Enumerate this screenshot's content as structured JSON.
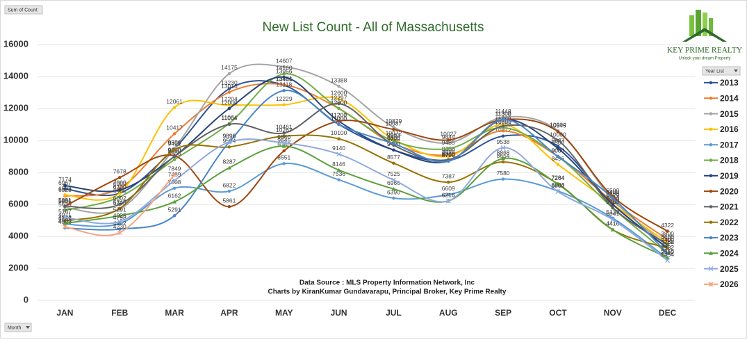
{
  "chart_data": {
    "type": "line",
    "title": "New List Count - All of Massachusetts",
    "field_button": "Sum of Count",
    "axis_button": "Month",
    "legend_title": "Year List",
    "brand": {
      "name": "KEY PRIME REALTY",
      "tagline": "Unlock your dream Property"
    },
    "notes": [
      "Data Source : MLS Property Information Network, Inc",
      "Charts by KiranKumar Gundavarapu, Principal Broker, Key Prime Realty"
    ],
    "categories": [
      "JAN",
      "FEB",
      "MAR",
      "APR",
      "MAY",
      "JUN",
      "JUL",
      "AUG",
      "SEP",
      "OCT",
      "NOV",
      "DEC"
    ],
    "ylim": [
      0,
      16000
    ],
    "yticks": [
      0,
      2000,
      4000,
      6000,
      8000,
      10000,
      12000,
      14000,
      16000
    ],
    "grid": true,
    "legend": "right",
    "series": [
      {
        "name": "2013",
        "color": "#2e5597",
        "marker": "circle",
        "values": [
          6967,
          6700,
          9500,
          13230,
          13456,
          11000,
          9400,
          8740,
          10272,
          9643,
          6001,
          3262
        ]
      },
      {
        "name": "2014",
        "color": "#ed7d31",
        "marker": "circle",
        "values": [
          6523,
          7000,
          10417,
          13016,
          13481,
          12000,
          9800,
          9100,
          10600,
          9000,
          6179,
          3800
        ]
      },
      {
        "name": "2015",
        "color": "#a5a5a5",
        "marker": "circle",
        "values": [
          5806,
          5700,
          9500,
          14175,
          14607,
          13388,
          10829,
          9844,
          11448,
          10604,
          6300,
          3400
        ]
      },
      {
        "name": "2016",
        "color": "#ffc000",
        "marker": "circle",
        "values": [
          6593,
          6700,
          12061,
          12204,
          12229,
          12600,
          10072,
          9000,
          11000,
          8496,
          6000,
          3600
        ]
      },
      {
        "name": "2017",
        "color": "#5b9bd5",
        "marker": "circle",
        "values": [
          4759,
          4798,
          7008,
          6822,
          8551,
          7536,
          6390,
          6609,
          7580,
          6836,
          5139,
          2612
        ]
      },
      {
        "name": "2018",
        "color": "#70ad47",
        "marker": "circle",
        "values": [
          5629,
          6465,
          8800,
          11064,
          14160,
          12000,
          9963,
          9485,
          10800,
          9000,
          5765,
          2932
        ]
      },
      {
        "name": "2019",
        "color": "#264478",
        "marker": "circle",
        "values": [
          7174,
          6900,
          9000,
          12000,
          13956,
          11200,
          9400,
          8700,
          11300,
          9500,
          6000,
          3262
        ]
      },
      {
        "name": "2020",
        "color": "#9e480e",
        "marker": "circle",
        "values": [
          5881,
          7678,
          9040,
          5861,
          9350,
          11201,
          10687,
          10027,
          11300,
          10545,
          6500,
          4322
        ]
      },
      {
        "name": "2021",
        "color": "#636363",
        "marker": "circle",
        "values": [
          5891,
          6002,
          9000,
          11004,
          10461,
          12297,
          9700,
          8800,
          10900,
          10000,
          5800,
          3500
        ]
      },
      {
        "name": "2022",
        "color": "#997300",
        "marker": "circle",
        "values": [
          4971,
          5745,
          9421,
          9594,
          10267,
          10100,
          8577,
          7387,
          8654,
          7284,
          4416,
          3268
        ]
      },
      {
        "name": "2023",
        "color": "#4a86c8",
        "marker": "circle",
        "values": [
          4523,
          4452,
          5291,
          9896,
          13118,
          11000,
          9800,
          8700,
          11302,
          9000,
          6400,
          2932
        ]
      },
      {
        "name": "2024",
        "color": "#5aa13a",
        "marker": "triangle",
        "values": [
          4823,
          5291,
          6162,
          8287,
          9645,
          8146,
          6966,
          6216,
          8868,
          7264,
          4416,
          2660
        ]
      },
      {
        "name": "2025",
        "color": "#8faadc",
        "marker": "x",
        "values": [
          5187,
          4925,
          7489,
          9896,
          9840,
          9140,
          7525,
          6216,
          9538,
          6802,
          5041,
          2494
        ]
      },
      {
        "name": "2026",
        "color": "#f4a582",
        "marker": "star",
        "values": [
          4600,
          4230,
          7849,
          null,
          null,
          null,
          null,
          null,
          null,
          null,
          null,
          null
        ]
      }
    ]
  }
}
